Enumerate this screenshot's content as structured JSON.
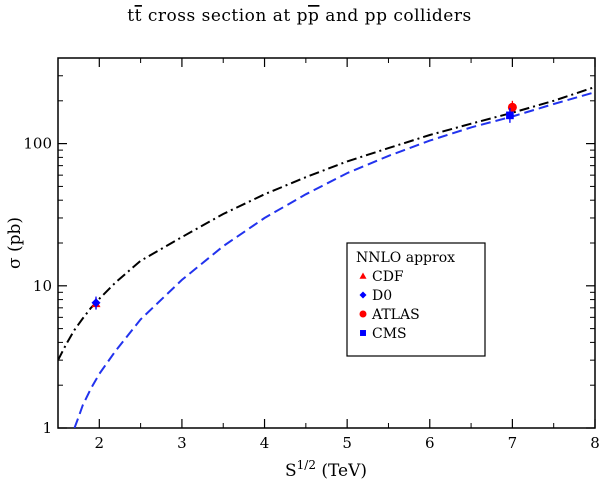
{
  "chart_data": {
    "type": "line",
    "title": "t t̄ cross section at p p̄ and pp colliders",
    "title_parts": {
      "t1": "t",
      "t2": "t",
      "mid1": " cross section at ",
      "p1": "p",
      "p2": "p",
      "mid2": " and pp colliders"
    },
    "xlabel": "S",
    "xlabel_sup": "1/2",
    "xlabel_unit": " (TeV)",
    "ylabel": "σ (pb)",
    "xlim": [
      1.5,
      8
    ],
    "ylim": [
      1,
      400
    ],
    "yscale": "log",
    "grid": false,
    "legend_position": "center-right",
    "x_ticks": [
      2,
      3,
      4,
      5,
      6,
      7,
      8
    ],
    "x_tick_labels": [
      "2",
      "3",
      "4",
      "5",
      "6",
      "7",
      "8"
    ],
    "y_ticks": [
      1,
      10,
      100
    ],
    "y_tick_labels": [
      "1",
      "10",
      "100"
    ],
    "legend_title": "NNLO approx",
    "series": [
      {
        "kind": "curve",
        "style": "dash-dot",
        "color": "#000000",
        "x": [
          1.5,
          1.6,
          1.7,
          1.8,
          1.9,
          1.96,
          2.0,
          2.2,
          2.5,
          3.0,
          3.5,
          4.0,
          4.5,
          5.0,
          5.5,
          6.0,
          6.5,
          7.0,
          7.5,
          8.0
        ],
        "y": [
          3.0,
          3.9,
          4.9,
          5.9,
          7.0,
          7.6,
          8.1,
          10.6,
          15.0,
          22.0,
          32.0,
          44.0,
          58.0,
          75.0,
          93.0,
          115.0,
          138.0,
          165.0,
          200.0,
          250.0
        ]
      },
      {
        "kind": "curve",
        "style": "dashed",
        "color": "#2233ee",
        "x": [
          1.7,
          1.75,
          1.8,
          1.9,
          2.0,
          2.2,
          2.5,
          3.0,
          3.5,
          4.0,
          4.5,
          5.0,
          5.5,
          6.0,
          6.5,
          7.0,
          7.5,
          8.0
        ],
        "y": [
          1.0,
          1.2,
          1.45,
          1.9,
          2.4,
          3.5,
          5.8,
          11.0,
          19.0,
          30.0,
          44.0,
          62.0,
          82.0,
          105.0,
          130.0,
          155.0,
          190.0,
          230.0
        ]
      },
      {
        "kind": "point",
        "name": "CDF",
        "marker": "triangle",
        "color": "#ff0000",
        "x": 1.96,
        "y": 7.5,
        "err": [
          6.9,
          8.2
        ]
      },
      {
        "kind": "point",
        "name": "D0",
        "marker": "diamond",
        "color": "#0000ff",
        "x": 1.96,
        "y": 7.6,
        "err": [
          6.8,
          8.4
        ]
      },
      {
        "kind": "point",
        "name": "ATLAS",
        "marker": "circle",
        "color": "#ff0000",
        "x": 7.0,
        "y": 180,
        "err": [
          160,
          200
        ]
      },
      {
        "kind": "point",
        "name": "CMS",
        "marker": "square",
        "color": "#0000ff",
        "x": 6.97,
        "y": 158,
        "err": [
          140,
          178
        ]
      }
    ]
  }
}
